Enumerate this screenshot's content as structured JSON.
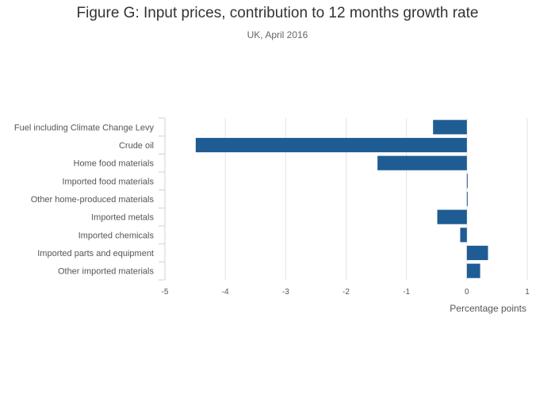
{
  "chart_data": {
    "type": "bar",
    "orientation": "horizontal",
    "title": "Figure G: Input prices, contribution to 12 months growth rate",
    "subtitle": "UK, April 2016",
    "xlabel": "Percentage points",
    "ylabel": "",
    "xlim": [
      -5,
      1
    ],
    "xticks": [
      "-5",
      "-4",
      "-3",
      "-2",
      "-1",
      "0",
      "1"
    ],
    "grid": true,
    "categories": [
      "Fuel including Climate Change Levy",
      "Crude oil",
      "Home food materials",
      "Imported food materials",
      "Other home-produced materials",
      "Imported metals",
      "Imported chemicals",
      "Imported parts and equipment",
      "Other imported materials"
    ],
    "values": [
      -0.56,
      -4.49,
      -1.48,
      0.01,
      0.01,
      -0.49,
      -0.11,
      0.35,
      0.22
    ],
    "bar_color": "#1f5c94"
  }
}
